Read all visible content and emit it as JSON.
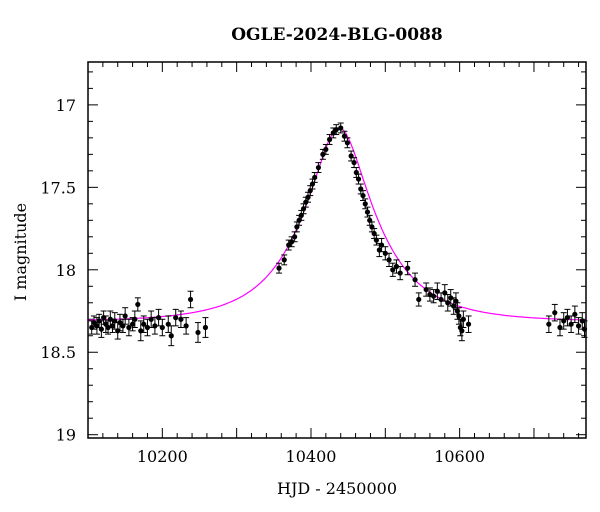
{
  "chart_data": {
    "type": "scatter",
    "title": "OGLE-2024-BLG-0088",
    "xlabel": "HJD - 2450000",
    "ylabel": "I magnitude",
    "xlim": [
      10100,
      10770
    ],
    "ylim": [
      19.02,
      16.74
    ],
    "y_inverted": true,
    "x_ticks": [
      10200,
      10400,
      10600
    ],
    "x_tick_labels": [
      "10200",
      "10400",
      "10600"
    ],
    "y_ticks": [
      17,
      17.5,
      18,
      18.5,
      19
    ],
    "y_tick_labels": [
      "17",
      "17.5",
      "18",
      "18.5",
      "19"
    ],
    "grid": false,
    "colors": {
      "points": "#000000",
      "model": "#ff00ff"
    },
    "series": [
      {
        "type": "errorbar-points",
        "points": [
          [
            10105,
            18.35,
            0.04
          ],
          [
            10108,
            18.32,
            0.04
          ],
          [
            10112,
            18.34,
            0.05
          ],
          [
            10115,
            18.31,
            0.04
          ],
          [
            10118,
            18.36,
            0.05
          ],
          [
            10121,
            18.29,
            0.04
          ],
          [
            10124,
            18.33,
            0.05
          ],
          [
            10127,
            18.35,
            0.04
          ],
          [
            10130,
            18.3,
            0.05
          ],
          [
            10133,
            18.34,
            0.04
          ],
          [
            10136,
            18.31,
            0.05
          ],
          [
            10140,
            18.37,
            0.05
          ],
          [
            10143,
            18.32,
            0.05
          ],
          [
            10147,
            18.34,
            0.04
          ],
          [
            10150,
            18.28,
            0.05
          ],
          [
            10155,
            18.35,
            0.05
          ],
          [
            10160,
            18.33,
            0.04
          ],
          [
            10163,
            18.3,
            0.05
          ],
          [
            10167,
            18.21,
            0.04
          ],
          [
            10171,
            18.37,
            0.06
          ],
          [
            10175,
            18.33,
            0.05
          ],
          [
            10180,
            18.35,
            0.05
          ],
          [
            10185,
            18.3,
            0.05
          ],
          [
            10190,
            18.34,
            0.05
          ],
          [
            10195,
            18.29,
            0.05
          ],
          [
            10200,
            18.35,
            0.05
          ],
          [
            10208,
            18.33,
            0.05
          ],
          [
            10212,
            18.4,
            0.06
          ],
          [
            10218,
            18.29,
            0.05
          ],
          [
            10225,
            18.3,
            0.05
          ],
          [
            10232,
            18.34,
            0.05
          ],
          [
            10238,
            18.18,
            0.05
          ],
          [
            10248,
            18.38,
            0.06
          ],
          [
            10258,
            18.35,
            0.06
          ],
          [
            10357,
            17.99,
            0.03
          ],
          [
            10364,
            17.94,
            0.03
          ],
          [
            10370,
            17.85,
            0.03
          ],
          [
            10374,
            17.83,
            0.03
          ],
          [
            10378,
            17.8,
            0.03
          ],
          [
            10381,
            17.74,
            0.03
          ],
          [
            10384,
            17.7,
            0.03
          ],
          [
            10387,
            17.67,
            0.03
          ],
          [
            10390,
            17.63,
            0.03
          ],
          [
            10393,
            17.59,
            0.03
          ],
          [
            10396,
            17.56,
            0.03
          ],
          [
            10399,
            17.52,
            0.03
          ],
          [
            10402,
            17.48,
            0.03
          ],
          [
            10405,
            17.44,
            0.03
          ],
          [
            10410,
            17.38,
            0.03
          ],
          [
            10416,
            17.3,
            0.03
          ],
          [
            10420,
            17.27,
            0.03
          ],
          [
            10425,
            17.21,
            0.03
          ],
          [
            10430,
            17.17,
            0.03
          ],
          [
            10434,
            17.15,
            0.03
          ],
          [
            10440,
            17.14,
            0.03
          ],
          [
            10445,
            17.19,
            0.03
          ],
          [
            10449,
            17.23,
            0.03
          ],
          [
            10454,
            17.31,
            0.03
          ],
          [
            10458,
            17.35,
            0.03
          ],
          [
            10461,
            17.41,
            0.03
          ],
          [
            10464,
            17.45,
            0.03
          ],
          [
            10467,
            17.51,
            0.03
          ],
          [
            10470,
            17.55,
            0.03
          ],
          [
            10473,
            17.6,
            0.03
          ],
          [
            10476,
            17.65,
            0.03
          ],
          [
            10479,
            17.7,
            0.03
          ],
          [
            10482,
            17.74,
            0.03
          ],
          [
            10485,
            17.78,
            0.03
          ],
          [
            10488,
            17.82,
            0.03
          ],
          [
            10492,
            17.88,
            0.04
          ],
          [
            10495,
            17.85,
            0.04
          ],
          [
            10500,
            17.9,
            0.04
          ],
          [
            10505,
            17.94,
            0.04
          ],
          [
            10510,
            18.0,
            0.04
          ],
          [
            10515,
            17.98,
            0.04
          ],
          [
            10520,
            18.02,
            0.04
          ],
          [
            10530,
            17.99,
            0.04
          ],
          [
            10540,
            18.06,
            0.04
          ],
          [
            10545,
            18.18,
            0.04
          ],
          [
            10555,
            18.12,
            0.04
          ],
          [
            10560,
            18.15,
            0.04
          ],
          [
            10565,
            18.16,
            0.04
          ],
          [
            10570,
            18.13,
            0.05
          ],
          [
            10575,
            18.18,
            0.04
          ],
          [
            10580,
            18.14,
            0.05
          ],
          [
            10584,
            18.2,
            0.05
          ],
          [
            10588,
            18.17,
            0.05
          ],
          [
            10592,
            18.22,
            0.05
          ],
          [
            10595,
            18.19,
            0.05
          ],
          [
            10597,
            18.25,
            0.05
          ],
          [
            10599,
            18.28,
            0.05
          ],
          [
            10601,
            18.35,
            0.05
          ],
          [
            10603,
            18.37,
            0.06
          ],
          [
            10605,
            18.3,
            0.05
          ],
          [
            10612,
            18.33,
            0.05
          ],
          [
            10720,
            18.33,
            0.05
          ],
          [
            10728,
            18.26,
            0.05
          ],
          [
            10735,
            18.35,
            0.05
          ],
          [
            10740,
            18.31,
            0.05
          ],
          [
            10745,
            18.29,
            0.05
          ],
          [
            10750,
            18.33,
            0.05
          ],
          [
            10755,
            18.27,
            0.05
          ],
          [
            10760,
            18.34,
            0.05
          ],
          [
            10765,
            18.31,
            0.05
          ],
          [
            10768,
            18.36,
            0.05
          ]
        ]
      },
      {
        "type": "model-curve",
        "peak_x": 10438,
        "peak_y": 17.14,
        "baseline_y": 18.315,
        "tE": 95
      }
    ]
  }
}
